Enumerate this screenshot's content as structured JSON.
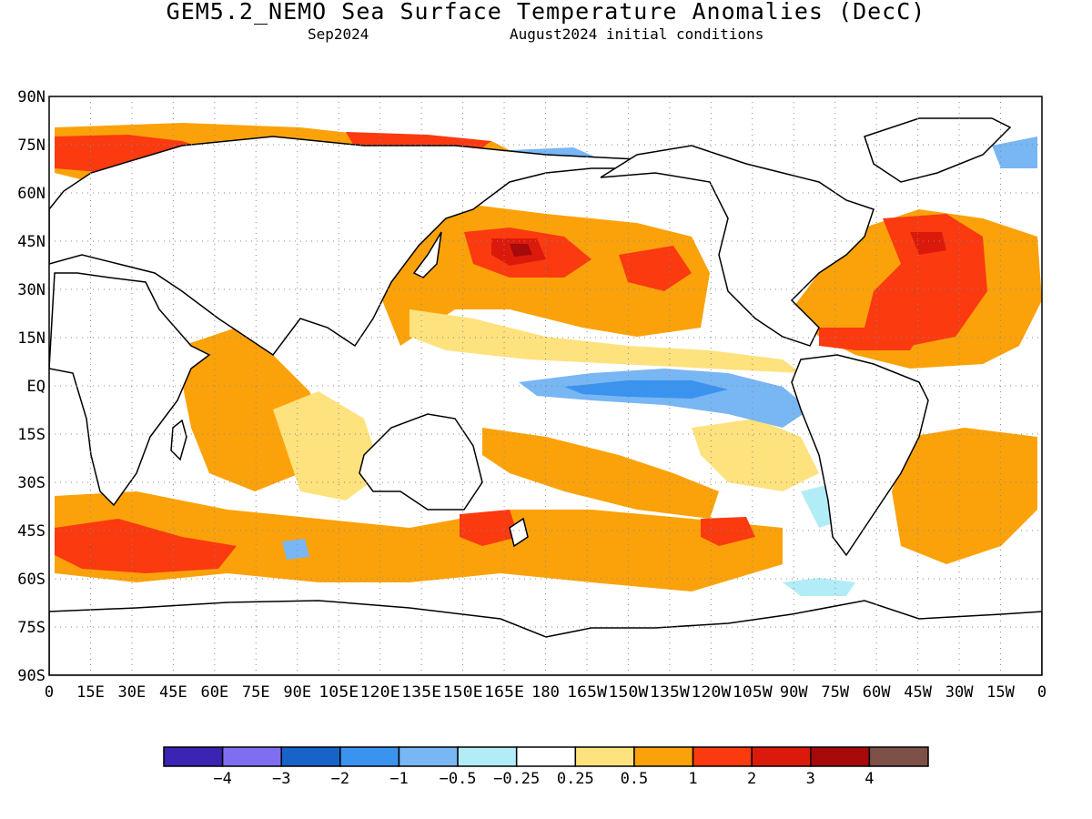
{
  "header": {
    "title": "GEM5.2_NEMO Sea Surface Temperature Anomalies (DecC)",
    "forecast_month": "Sep2024",
    "initial_conditions": "August2024 initial conditions"
  },
  "map": {
    "projection": "cylindrical equidistant",
    "lat_ticks": [
      "90N",
      "75N",
      "60N",
      "45N",
      "30N",
      "15N",
      "EQ",
      "15S",
      "30S",
      "45S",
      "60S",
      "75S",
      "90S"
    ],
    "lon_ticks": [
      "0",
      "15E",
      "30E",
      "45E",
      "60E",
      "75E",
      "90E",
      "105E",
      "120E",
      "135E",
      "150E",
      "165E",
      "180",
      "165W",
      "150W",
      "135W",
      "120W",
      "105W",
      "90W",
      "75W",
      "60W",
      "45W",
      "30W",
      "15W",
      "0"
    ],
    "lon_tick_labels_as_drawn": [
      "0",
      "15E",
      "30E",
      "45E",
      "60E",
      "75E",
      "90E",
      "105E",
      "120E",
      "135E",
      "150E",
      "165E",
      "180",
      "165W",
      "150W",
      "135W",
      "120W",
      "105W",
      "90W",
      "75W",
      "60W",
      "45W",
      "30W",
      "15W",
      "0"
    ],
    "grid": "dotted",
    "land_color": "#ffffff",
    "coastline_color": "#000000"
  },
  "colorbar": {
    "labels": [
      "-4",
      "-3",
      "-2",
      "-1",
      "-0.5",
      "-0.25",
      "0.25",
      "0.5",
      "1",
      "2",
      "3",
      "4"
    ],
    "colors": [
      "#3b23b3",
      "#7f6ff0",
      "#1763c8",
      "#3a93ef",
      "#78b6f4",
      "#b2ecf7",
      "#ffffff",
      "#fde27e",
      "#fba20a",
      "#fb3a10",
      "#dc1a0b",
      "#a60a0a",
      "#7d5048"
    ]
  }
}
